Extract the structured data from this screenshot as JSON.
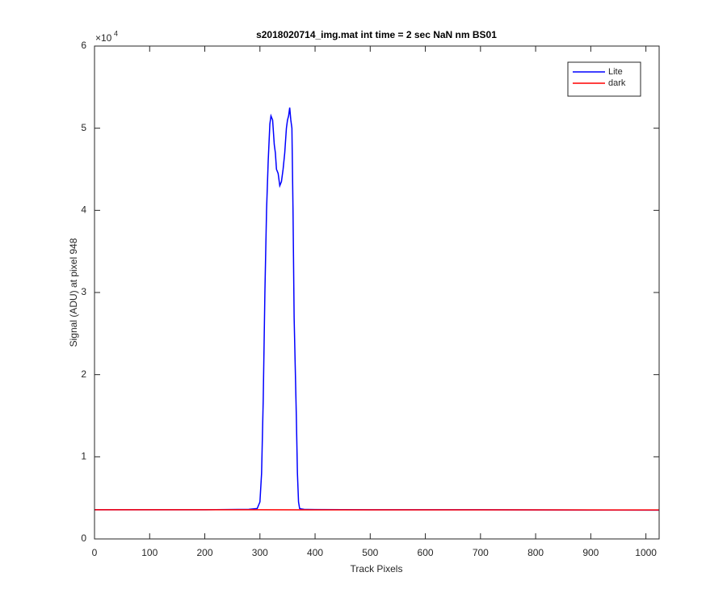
{
  "chart_data": {
    "type": "line",
    "title": "s2018020714_img.mat int time = 2 sec  NaN nm BS01",
    "x_label": "Track Pixels",
    "y_label": "Signal (ADU) at pixel 948",
    "y_exponent": {
      "base": "×10",
      "power": "4"
    },
    "xlim": [
      0,
      1024
    ],
    "xticks": [
      0,
      100,
      200,
      300,
      400,
      500,
      600,
      700,
      800,
      900,
      1000
    ],
    "ylim": [
      0,
      60000
    ],
    "yticks": [
      {
        "value": 0,
        "label": "0"
      },
      {
        "value": 10000,
        "label": "1"
      },
      {
        "value": 20000,
        "label": "2"
      },
      {
        "value": 30000,
        "label": "3"
      },
      {
        "value": 40000,
        "label": "4"
      },
      {
        "value": 50000,
        "label": "5"
      },
      {
        "value": 60000,
        "label": "6"
      }
    ],
    "grid": false,
    "legend_position": "northeast",
    "series": [
      {
        "name": "Lite",
        "color": "#0000ff",
        "x": [
          0,
          100,
          200,
          280,
          295,
          300,
          303,
          306,
          309,
          312,
          315,
          318,
          320,
          323,
          326,
          328,
          330,
          333,
          336,
          339,
          342,
          345,
          348,
          350,
          352,
          354,
          356,
          358,
          360,
          362,
          364,
          366,
          368,
          370,
          372,
          375,
          380,
          400,
          500,
          700,
          900,
          1024
        ],
        "values": [
          3550,
          3550,
          3550,
          3600,
          3700,
          4500,
          8000,
          17000,
          30000,
          40000,
          46000,
          50500,
          51500,
          51000,
          48000,
          47000,
          45000,
          44500,
          43000,
          43500,
          45000,
          47000,
          50000,
          51000,
          51500,
          52500,
          51000,
          50000,
          40000,
          27000,
          21000,
          15000,
          8000,
          4500,
          3700,
          3650,
          3600,
          3580,
          3550,
          3550,
          3520,
          3500
        ]
      },
      {
        "name": "dark",
        "color": "#ff0000",
        "x": [
          0,
          300,
          600,
          1024
        ],
        "values": [
          3550,
          3550,
          3540,
          3530
        ]
      }
    ]
  }
}
